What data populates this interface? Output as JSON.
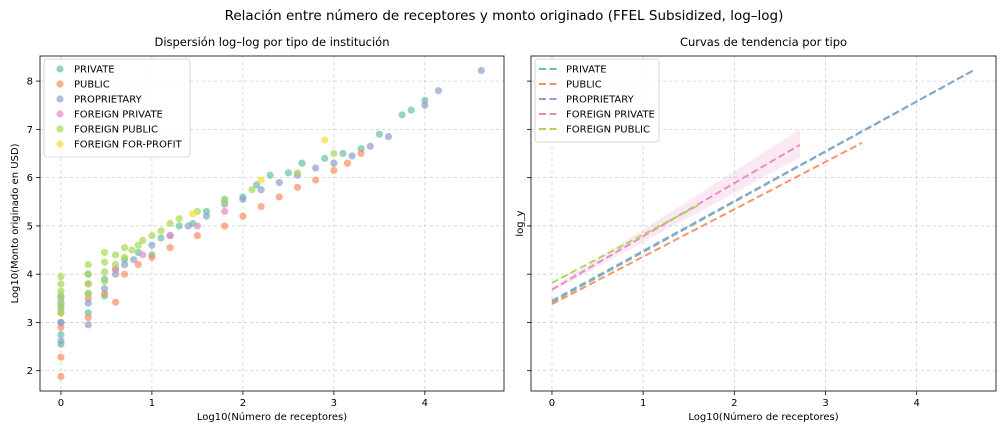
{
  "suptitle": "Relación entre número de receptores y monto originado (FFEL Subsidized, log–log)",
  "chart_data": [
    {
      "type": "scatter",
      "title": "Dispersión log–log por tipo de institución",
      "xlabel": "Log10(Número de receptores)",
      "ylabel": "Log10(Monto originado en USD)",
      "xlim": [
        -0.23,
        4.87
      ],
      "ylim": [
        1.58,
        8.52
      ],
      "xticks": [
        0,
        1,
        2,
        3,
        4
      ],
      "yticks": [
        2,
        3,
        4,
        5,
        6,
        7,
        8
      ],
      "grid": true,
      "legend_position": "top-left",
      "series": [
        {
          "name": "PRIVATE",
          "color": "#66c2a5",
          "points": [
            [
              0,
              2.55
            ],
            [
              0,
              2.75
            ],
            [
              0,
              3.0
            ],
            [
              0,
              3.3
            ],
            [
              0,
              3.55
            ],
            [
              0.3,
              3.2
            ],
            [
              0.3,
              3.6
            ],
            [
              0.3,
              4.0
            ],
            [
              0.48,
              3.55
            ],
            [
              0.48,
              3.9
            ],
            [
              0.6,
              4.1
            ],
            [
              0.7,
              4.3
            ],
            [
              0.85,
              4.45
            ],
            [
              1.0,
              4.4
            ],
            [
              1.1,
              4.75
            ],
            [
              1.3,
              5.0
            ],
            [
              1.45,
              5.05
            ],
            [
              1.6,
              5.3
            ],
            [
              1.8,
              5.55
            ],
            [
              2.0,
              5.6
            ],
            [
              2.15,
              5.85
            ],
            [
              2.3,
              6.05
            ],
            [
              2.5,
              6.1
            ],
            [
              2.65,
              6.3
            ],
            [
              2.9,
              6.4
            ],
            [
              3.1,
              6.5
            ],
            [
              3.3,
              6.6
            ],
            [
              3.5,
              6.9
            ],
            [
              3.75,
              7.3
            ],
            [
              3.85,
              7.4
            ],
            [
              4.0,
              7.6
            ]
          ]
        },
        {
          "name": "PUBLIC",
          "color": "#fc8d62",
          "points": [
            [
              0,
              1.88
            ],
            [
              0,
              2.28
            ],
            [
              0,
              2.9
            ],
            [
              0,
              3.2
            ],
            [
              0.3,
              3.1
            ],
            [
              0.3,
              3.5
            ],
            [
              0.48,
              3.6
            ],
            [
              0.6,
              3.42
            ],
            [
              0.7,
              4.0
            ],
            [
              0.85,
              4.2
            ],
            [
              1.0,
              4.35
            ],
            [
              1.2,
              4.55
            ],
            [
              1.5,
              4.8
            ],
            [
              1.8,
              5.0
            ],
            [
              2.0,
              5.2
            ],
            [
              2.2,
              5.4
            ],
            [
              2.4,
              5.6
            ],
            [
              2.6,
              5.8
            ],
            [
              2.8,
              5.95
            ],
            [
              3.0,
              6.15
            ],
            [
              3.15,
              6.3
            ],
            [
              3.3,
              6.5
            ]
          ]
        },
        {
          "name": "PROPRIETARY",
          "color": "#8da0cb",
          "points": [
            [
              0,
              2.62
            ],
            [
              0,
              3.0
            ],
            [
              0,
              3.4
            ],
            [
              0.3,
              2.95
            ],
            [
              0.3,
              3.4
            ],
            [
              0.48,
              3.7
            ],
            [
              0.6,
              4.0
            ],
            [
              0.7,
              4.2
            ],
            [
              0.8,
              4.3
            ],
            [
              1.0,
              4.6
            ],
            [
              1.2,
              4.8
            ],
            [
              1.4,
              5.0
            ],
            [
              1.6,
              5.2
            ],
            [
              1.8,
              5.45
            ],
            [
              2.0,
              5.55
            ],
            [
              2.2,
              5.75
            ],
            [
              2.4,
              5.9
            ],
            [
              2.6,
              6.05
            ],
            [
              2.8,
              6.2
            ],
            [
              3.0,
              6.3
            ],
            [
              3.2,
              6.45
            ],
            [
              3.4,
              6.65
            ],
            [
              3.6,
              6.85
            ],
            [
              4.0,
              7.5
            ],
            [
              4.15,
              7.8
            ],
            [
              4.62,
              8.22
            ]
          ]
        },
        {
          "name": "FOREIGN PRIVATE",
          "color": "#e78ac3",
          "points": [
            [
              0,
              3.5
            ],
            [
              0.3,
              3.8
            ],
            [
              0.6,
              4.1
            ],
            [
              0.9,
              4.4
            ],
            [
              1.2,
              4.8
            ],
            [
              1.5,
              5.0
            ],
            [
              1.8,
              5.3
            ]
          ]
        },
        {
          "name": "FOREIGN PUBLIC",
          "color": "#a6d854",
          "points": [
            [
              0,
              3.2
            ],
            [
              0,
              3.35
            ],
            [
              0,
              3.5
            ],
            [
              0,
              3.65
            ],
            [
              0,
              3.8
            ],
            [
              0,
              3.95
            ],
            [
              0.3,
              3.6
            ],
            [
              0.3,
              3.8
            ],
            [
              0.3,
              4.0
            ],
            [
              0.3,
              4.2
            ],
            [
              0.48,
              3.85
            ],
            [
              0.48,
              4.05
            ],
            [
              0.48,
              4.25
            ],
            [
              0.48,
              4.45
            ],
            [
              0.6,
              4.2
            ],
            [
              0.6,
              4.4
            ],
            [
              0.7,
              4.35
            ],
            [
              0.7,
              4.55
            ],
            [
              0.78,
              4.5
            ],
            [
              0.85,
              4.6
            ],
            [
              0.9,
              4.7
            ],
            [
              1.0,
              4.8
            ],
            [
              1.1,
              4.9
            ],
            [
              1.2,
              5.05
            ],
            [
              1.3,
              5.15
            ],
            [
              1.5,
              5.3
            ],
            [
              1.8,
              5.5
            ],
            [
              2.1,
              5.75
            ],
            [
              2.6,
              6.1
            ],
            [
              3.0,
              6.5
            ]
          ]
        },
        {
          "name": "FOREIGN FOR-PROFIT",
          "color": "#ffd92f",
          "points": [
            [
              1.45,
              5.25
            ],
            [
              2.2,
              5.95
            ],
            [
              2.9,
              6.78
            ]
          ]
        }
      ]
    },
    {
      "type": "line",
      "title": "Curvas de tendencia por tipo",
      "xlabel": "Log10(Número de receptores)",
      "ylabel": "log_y",
      "xlim": [
        -0.23,
        4.87
      ],
      "ylim": [
        1.58,
        8.52
      ],
      "xticks": [
        0,
        1,
        2,
        3,
        4
      ],
      "grid": true,
      "legend_position": "top-left",
      "series": [
        {
          "name": "PRIVATE",
          "color": "#66c2a5",
          "x": [
            0,
            4.62
          ],
          "y": [
            3.42,
            8.22
          ]
        },
        {
          "name": "PUBLIC",
          "color": "#fc8d62",
          "x": [
            0,
            3.4
          ],
          "y": [
            3.38,
            6.72
          ]
        },
        {
          "name": "PROPRIETARY",
          "color": "#8da0cb",
          "x": [
            0,
            4.62
          ],
          "y": [
            3.45,
            8.22
          ]
        },
        {
          "name": "FOREIGN PRIVATE",
          "color": "#e78ac3",
          "x": [
            0,
            2.72
          ],
          "y": [
            3.68,
            6.68
          ],
          "band_low": [
            3.64,
            6.42
          ],
          "band_high": [
            3.72,
            7.0
          ]
        },
        {
          "name": "FOREIGN PUBLIC",
          "color": "#a6d854",
          "x": [
            0,
            1.6
          ],
          "y": [
            3.82,
            5.42
          ]
        }
      ]
    }
  ]
}
